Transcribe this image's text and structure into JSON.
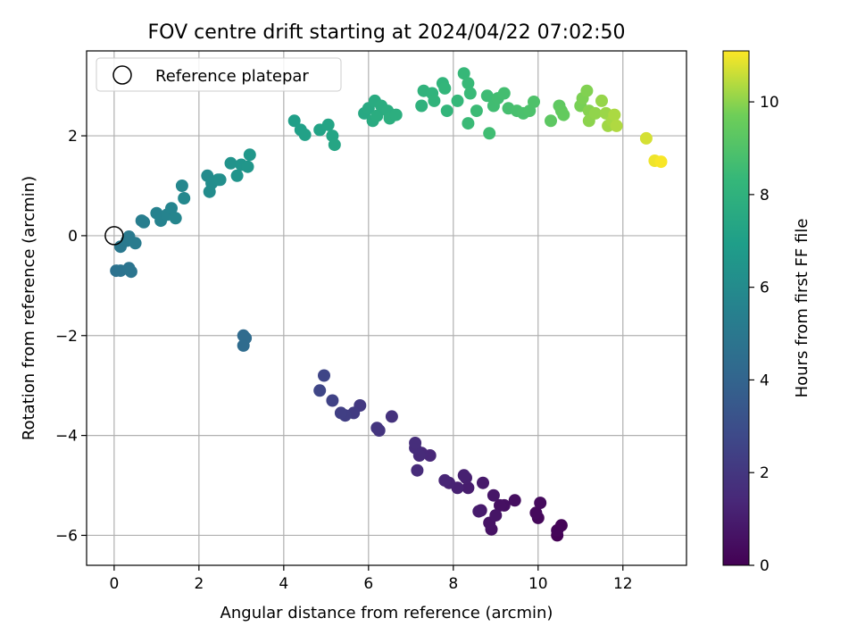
{
  "chart_data": {
    "type": "scatter",
    "title": "FOV centre drift starting at 2024/04/22 07:02:50",
    "xlabel": "Angular distance from reference (arcmin)",
    "ylabel": "Rotation from reference (arcmin)",
    "xlim": [
      -0.65,
      13.5
    ],
    "ylim": [
      -6.6,
      3.7
    ],
    "xticks": [
      0,
      2,
      4,
      6,
      8,
      10,
      12
    ],
    "yticks": [
      -6,
      -4,
      -2,
      0,
      2
    ],
    "grid": true,
    "legend": {
      "location": "upper left",
      "entries": [
        "Reference platepar"
      ]
    },
    "reference_point": {
      "x": 0,
      "y": 0
    },
    "colorbar": {
      "label": "Hours from first FF file",
      "range": [
        0,
        11.1
      ],
      "ticks": [
        0,
        2,
        4,
        6,
        8,
        10
      ],
      "colormap": "viridis"
    },
    "points": [
      [
        10.45,
        -6.0,
        0.05
      ],
      [
        10.55,
        -5.8,
        0.1
      ],
      [
        10.45,
        -5.9,
        0.15
      ],
      [
        10.0,
        -5.65,
        0.25
      ],
      [
        9.95,
        -5.55,
        0.3
      ],
      [
        10.05,
        -5.35,
        0.35
      ],
      [
        9.45,
        -5.3,
        0.45
      ],
      [
        9.2,
        -5.4,
        0.5
      ],
      [
        9.1,
        -5.4,
        0.55
      ],
      [
        8.9,
        -5.88,
        0.6
      ],
      [
        8.85,
        -5.75,
        0.65
      ],
      [
        9.0,
        -5.6,
        0.7
      ],
      [
        8.95,
        -5.2,
        0.75
      ],
      [
        8.65,
        -5.5,
        0.8
      ],
      [
        8.7,
        -4.95,
        0.9
      ],
      [
        8.6,
        -5.52,
        0.95
      ],
      [
        8.35,
        -5.05,
        1.0
      ],
      [
        8.3,
        -4.85,
        1.05
      ],
      [
        8.25,
        -4.8,
        1.1
      ],
      [
        8.1,
        -5.05,
        1.15
      ],
      [
        7.9,
        -4.95,
        1.2
      ],
      [
        7.8,
        -4.9,
        1.3
      ],
      [
        7.45,
        -4.4,
        1.4
      ],
      [
        7.25,
        -4.35,
        1.45
      ],
      [
        7.2,
        -4.4,
        1.5
      ],
      [
        7.15,
        -4.7,
        1.55
      ],
      [
        7.1,
        -4.25,
        1.6
      ],
      [
        7.1,
        -4.15,
        1.65
      ],
      [
        6.55,
        -3.62,
        1.8
      ],
      [
        6.25,
        -3.9,
        1.9
      ],
      [
        6.2,
        -3.85,
        1.95
      ],
      [
        5.8,
        -3.4,
        2.1
      ],
      [
        5.65,
        -3.55,
        2.2
      ],
      [
        5.45,
        -3.6,
        2.3
      ],
      [
        5.35,
        -3.55,
        2.35
      ],
      [
        5.15,
        -3.3,
        2.5
      ],
      [
        4.95,
        -2.8,
        2.6
      ],
      [
        4.85,
        -3.1,
        2.65
      ],
      [
        3.05,
        -2.0,
        4.3
      ],
      [
        3.1,
        -2.05,
        4.35
      ],
      [
        3.05,
        -2.2,
        4.4
      ],
      [
        0.05,
        -0.7,
        4.7
      ],
      [
        0.15,
        -0.7,
        4.75
      ],
      [
        0.35,
        -0.65,
        4.8
      ],
      [
        0.4,
        -0.72,
        4.85
      ],
      [
        0.15,
        -0.22,
        5.0
      ],
      [
        0.3,
        -0.1,
        5.05
      ],
      [
        0.35,
        -0.02,
        5.1
      ],
      [
        0.5,
        -0.15,
        5.15
      ],
      [
        0.65,
        0.3,
        5.3
      ],
      [
        0.7,
        0.27,
        5.35
      ],
      [
        1.0,
        0.45,
        5.5
      ],
      [
        1.1,
        0.3,
        5.55
      ],
      [
        1.25,
        0.42,
        5.6
      ],
      [
        1.35,
        0.55,
        5.65
      ],
      [
        1.45,
        0.35,
        5.7
      ],
      [
        1.6,
        1.0,
        5.8
      ],
      [
        1.65,
        0.75,
        5.85
      ],
      [
        2.2,
        1.2,
        6.0
      ],
      [
        2.25,
        0.88,
        6.05
      ],
      [
        2.3,
        1.05,
        6.1
      ],
      [
        2.45,
        1.12,
        6.15
      ],
      [
        2.5,
        1.12,
        6.2
      ],
      [
        2.75,
        1.45,
        6.4
      ],
      [
        2.9,
        1.2,
        6.45
      ],
      [
        3.0,
        1.42,
        6.5
      ],
      [
        3.15,
        1.38,
        6.55
      ],
      [
        3.2,
        1.62,
        6.6
      ],
      [
        4.25,
        2.3,
        7.0
      ],
      [
        4.4,
        2.12,
        7.05
      ],
      [
        4.5,
        2.02,
        7.1
      ],
      [
        4.85,
        2.12,
        7.2
      ],
      [
        5.05,
        2.22,
        7.25
      ],
      [
        5.15,
        2.0,
        7.3
      ],
      [
        5.2,
        1.82,
        7.35
      ],
      [
        5.9,
        2.45,
        7.5
      ],
      [
        6.0,
        2.55,
        7.55
      ],
      [
        6.1,
        2.3,
        7.6
      ],
      [
        6.15,
        2.7,
        7.65
      ],
      [
        6.2,
        2.4,
        7.7
      ],
      [
        6.3,
        2.6,
        7.72
      ],
      [
        6.45,
        2.5,
        7.75
      ],
      [
        6.5,
        2.35,
        7.8
      ],
      [
        6.65,
        2.42,
        7.82
      ],
      [
        7.25,
        2.6,
        8.0
      ],
      [
        7.3,
        2.9,
        8.05
      ],
      [
        7.5,
        2.85,
        8.1
      ],
      [
        7.55,
        2.7,
        8.12
      ],
      [
        7.75,
        3.05,
        8.15
      ],
      [
        7.8,
        2.95,
        8.2
      ],
      [
        7.85,
        2.5,
        8.22
      ],
      [
        8.1,
        2.7,
        8.3
      ],
      [
        8.25,
        3.25,
        8.35
      ],
      [
        8.35,
        3.05,
        8.4
      ],
      [
        8.4,
        2.85,
        8.42
      ],
      [
        8.35,
        2.25,
        8.45
      ],
      [
        8.55,
        2.5,
        8.5
      ],
      [
        8.8,
        2.8,
        8.55
      ],
      [
        8.85,
        2.05,
        8.6
      ],
      [
        8.95,
        2.6,
        8.62
      ],
      [
        9.05,
        2.75,
        8.65
      ],
      [
        9.2,
        2.85,
        8.7
      ],
      [
        9.3,
        2.55,
        8.75
      ],
      [
        9.5,
        2.5,
        8.8
      ],
      [
        9.65,
        2.45,
        8.85
      ],
      [
        9.8,
        2.5,
        8.9
      ],
      [
        9.9,
        2.68,
        8.95
      ],
      [
        10.3,
        2.3,
        9.3
      ],
      [
        10.5,
        2.6,
        9.35
      ],
      [
        10.55,
        2.5,
        9.4
      ],
      [
        10.6,
        2.42,
        9.45
      ],
      [
        11.0,
        2.6,
        9.8
      ],
      [
        11.05,
        2.75,
        9.85
      ],
      [
        11.15,
        2.9,
        9.9
      ],
      [
        11.2,
        2.5,
        9.95
      ],
      [
        11.2,
        2.3,
        10.0
      ],
      [
        11.35,
        2.45,
        10.05
      ],
      [
        11.5,
        2.7,
        10.1
      ],
      [
        11.6,
        2.45,
        10.15
      ],
      [
        11.65,
        2.2,
        10.2
      ],
      [
        11.75,
        2.3,
        10.25
      ],
      [
        11.8,
        2.42,
        10.3
      ],
      [
        11.85,
        2.2,
        10.35
      ],
      [
        12.55,
        1.95,
        10.7
      ],
      [
        12.75,
        1.5,
        10.95
      ],
      [
        12.9,
        1.48,
        11.05
      ]
    ]
  }
}
